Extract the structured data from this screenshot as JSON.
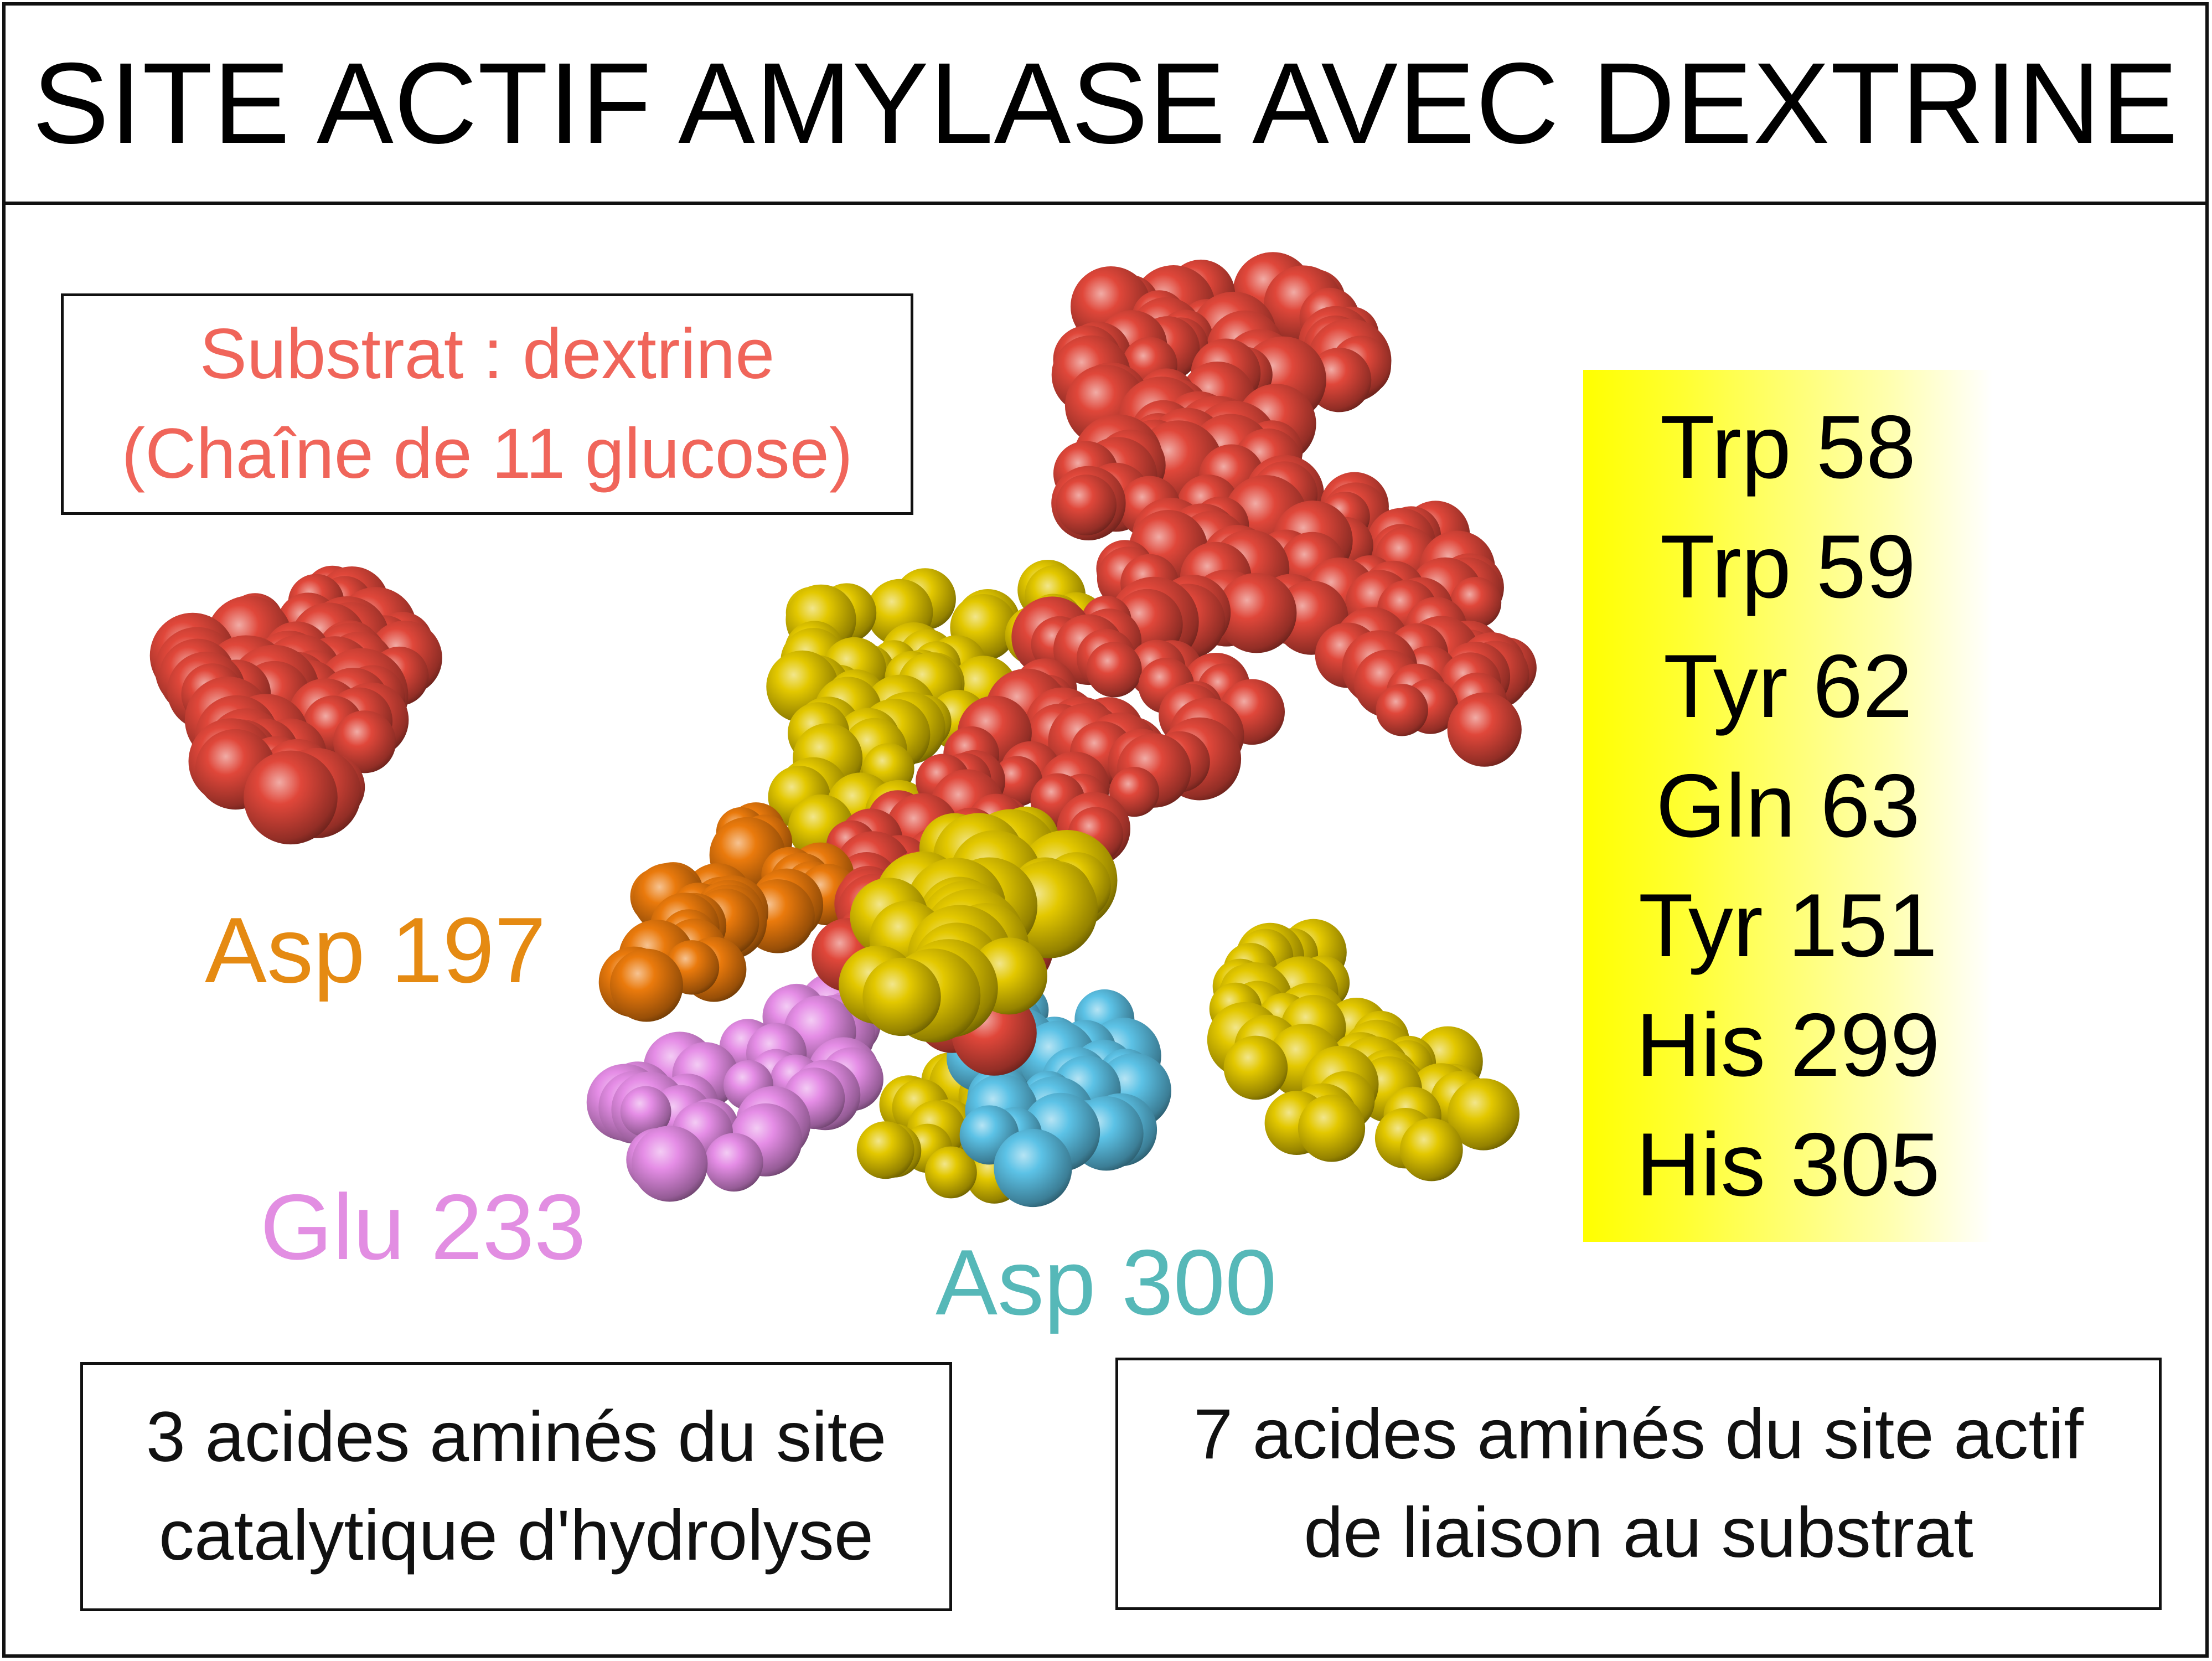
{
  "title": "SITE ACTIF AMYLASE AVEC DEXTRINE",
  "substrate_box": {
    "line1": "Substrat : dextrine",
    "line2": "(Chaîne de 11 glucose)",
    "color": "#f0655a"
  },
  "labels": {
    "asp197": {
      "text": "Asp 197",
      "color": "#e58a12"
    },
    "glu233": {
      "text": "Glu 233",
      "color": "#e28ee2"
    },
    "asp300": {
      "text": "Asp 300",
      "color": "#56b8b8"
    }
  },
  "binding_residues": [
    "Trp 58",
    "Trp 59",
    "Tyr 62",
    "Gln 63",
    "Tyr 151",
    "His 299",
    "His 305"
  ],
  "catalytic_box": {
    "line1": "3 acides aminés du site",
    "line2": "catalytique d'hydrolyse"
  },
  "binding_box": {
    "line1": "7 acides aminés du site actif",
    "line2": "de liaison au substrat"
  },
  "colors": {
    "dextrine": "#e0473a",
    "binding_site": "#e3c800",
    "asp197": "#ea7a0c",
    "glu233": "#e58de6",
    "asp300": "#5cc2e6",
    "panel_yellow": "#ffff00"
  }
}
